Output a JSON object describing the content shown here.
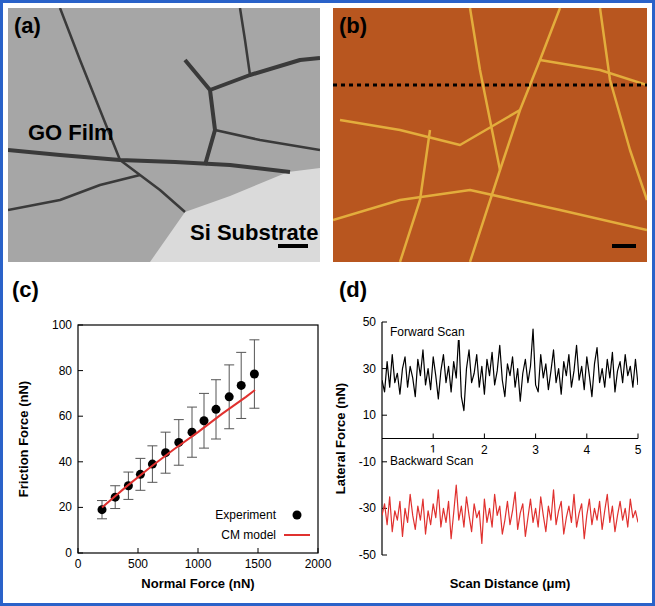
{
  "images": [
    {
      "panel": "(a)",
      "labels": [
        "GO Film",
        "Si Substrate"
      ]
    },
    {
      "panel": "(b)"
    }
  ],
  "chart_data": [
    {
      "type": "scatter",
      "panel": "(c)",
      "x_label": "Normal Force (nN)",
      "y_label": "Friction Force (nN)",
      "xlim": [
        0,
        2000
      ],
      "ylim": [
        0,
        100
      ],
      "xticks": [
        0,
        500,
        1000,
        1500,
        2000
      ],
      "yticks": [
        0,
        20,
        40,
        60,
        80,
        100
      ],
      "legend": "lower right",
      "series": [
        {
          "name": "Experiment",
          "type": "scatter",
          "color": "#000000",
          "marker": "circle",
          "x": [
            200,
            310,
            420,
            520,
            620,
            730,
            840,
            950,
            1050,
            1150,
            1260,
            1360,
            1470
          ],
          "values": [
            19,
            24.5,
            29.5,
            34.5,
            39,
            44,
            48.5,
            53,
            58,
            63,
            68.5,
            73.5,
            78.5
          ],
          "error": [
            4,
            5,
            6,
            7,
            8,
            9,
            10,
            11,
            12,
            13,
            14,
            14.5,
            15
          ]
        },
        {
          "name": "CM model",
          "type": "line",
          "color": "#e0312f",
          "line_style": "solid",
          "x": [
            200,
            400,
            600,
            800,
            1000,
            1200,
            1400,
            1475
          ],
          "values": [
            20,
            29,
            37.5,
            45.5,
            53,
            61,
            68.5,
            71.5
          ]
        }
      ]
    },
    {
      "type": "line",
      "panel": "(d)",
      "x_label": "Scan Distance (μm)",
      "y_label": "Lateral Force (nN)",
      "xlim": [
        0,
        5
      ],
      "ylim": [
        -50,
        50
      ],
      "xticks": [
        1,
        2,
        3,
        4,
        5
      ],
      "yticks": [
        -50,
        -30,
        -10,
        10,
        30,
        50
      ],
      "x": [
        0,
        0.05,
        0.1,
        0.15,
        0.2,
        0.25,
        0.3,
        0.35,
        0.4,
        0.45,
        0.5,
        0.55,
        0.6,
        0.65,
        0.7,
        0.75,
        0.8,
        0.85,
        0.9,
        0.95,
        1,
        1.05,
        1.1,
        1.15,
        1.2,
        1.25,
        1.3,
        1.35,
        1.4,
        1.45,
        1.5,
        1.55,
        1.6,
        1.65,
        1.7,
        1.75,
        1.8,
        1.85,
        1.9,
        1.95,
        2,
        2.05,
        2.1,
        2.15,
        2.2,
        2.25,
        2.3,
        2.35,
        2.4,
        2.45,
        2.5,
        2.55,
        2.6,
        2.65,
        2.7,
        2.75,
        2.8,
        2.85,
        2.9,
        2.95,
        3,
        3.05,
        3.1,
        3.15,
        3.2,
        3.25,
        3.3,
        3.35,
        3.4,
        3.45,
        3.5,
        3.55,
        3.6,
        3.65,
        3.7,
        3.75,
        3.8,
        3.85,
        3.9,
        3.95,
        4,
        4.05,
        4.1,
        4.15,
        4.2,
        4.25,
        4.3,
        4.35,
        4.4,
        4.45,
        4.5,
        4.55,
        4.6,
        4.65,
        4.7,
        4.75,
        4.8,
        4.85,
        4.9,
        4.95,
        5
      ],
      "series": [
        {
          "name": "Forward Scan",
          "color": "#000000",
          "line_style": "solid",
          "values": [
            25,
            20,
            33,
            22,
            36,
            24,
            28,
            19,
            30,
            35,
            22,
            31,
            26,
            18,
            34,
            27,
            38,
            23,
            30,
            21,
            35,
            27,
            17,
            29,
            36,
            24,
            31,
            20,
            33,
            26,
            45,
            18,
            12,
            30,
            38,
            24,
            28,
            36,
            22,
            31,
            19,
            34,
            27,
            37,
            23,
            29,
            40,
            25,
            18,
            32,
            27,
            35,
            22,
            30,
            16,
            28,
            34,
            24,
            31,
            47,
            23,
            20,
            36,
            26,
            32,
            21,
            29,
            38,
            24,
            30,
            19,
            33,
            27,
            36,
            22,
            29,
            40,
            25,
            31,
            21,
            35,
            27,
            18,
            32,
            39,
            24,
            30,
            22,
            34,
            26,
            37,
            20,
            29,
            33,
            24,
            36,
            27,
            31,
            22,
            34,
            23
          ]
        },
        {
          "name": "Backward Scan",
          "color": "#e0312f",
          "line_style": "solid",
          "values": [
            -33,
            -28,
            -37,
            -25,
            -40,
            -31,
            -35,
            -27,
            -42,
            -30,
            -36,
            -24,
            -33,
            -39,
            -29,
            -35,
            -26,
            -41,
            -31,
            -37,
            -28,
            -34,
            -22,
            -38,
            -30,
            -36,
            -27,
            -43,
            -32,
            -20,
            -35,
            -29,
            -38,
            -25,
            -33,
            -40,
            -28,
            -34,
            -31,
            -45,
            -26,
            -36,
            -30,
            -38,
            -24,
            -33,
            -29,
            -41,
            -35,
            -27,
            -37,
            -31,
            -23,
            -39,
            -32,
            -28,
            -42,
            -34,
            -26,
            -36,
            -30,
            -38,
            -25,
            -33,
            -40,
            -29,
            -35,
            -22,
            -37,
            -31,
            -27,
            -41,
            -34,
            -29,
            -36,
            -24,
            -38,
            -32,
            -28,
            -43,
            -33,
            -26,
            -37,
            -30,
            -35,
            -27,
            -39,
            -31,
            -24,
            -36,
            -29,
            -40,
            -33,
            -27,
            -35,
            -30,
            -38,
            -26,
            -34,
            -31,
            -36
          ]
        }
      ]
    }
  ]
}
